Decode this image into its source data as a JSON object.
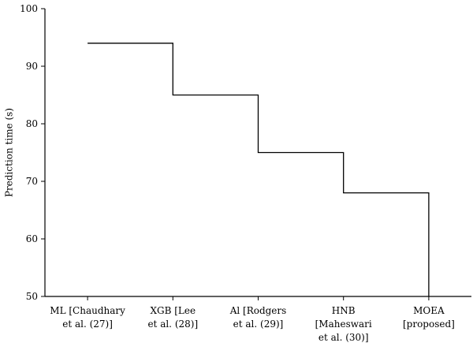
{
  "chart_data": {
    "type": "line",
    "style": "step",
    "categories": [
      [
        "ML [Chaudhary",
        "et al. (27)]"
      ],
      [
        "XGB [Lee",
        "et al. (28)]"
      ],
      [
        "Al [Rodgers",
        "et al. (29)]"
      ],
      [
        "HNB",
        "[Maheswari",
        "et al. (30)]"
      ],
      [
        "MOEA",
        "[proposed]"
      ]
    ],
    "series": [
      {
        "values": [
          94,
          85,
          75,
          68,
          50
        ]
      }
    ],
    "ylabel": "Prediction time (s)",
    "xlabel": "",
    "title": "",
    "ylim": [
      50,
      100
    ],
    "yticks": [
      50,
      60,
      70,
      80,
      90,
      100
    ],
    "grid": false,
    "line_color": "#000000"
  }
}
